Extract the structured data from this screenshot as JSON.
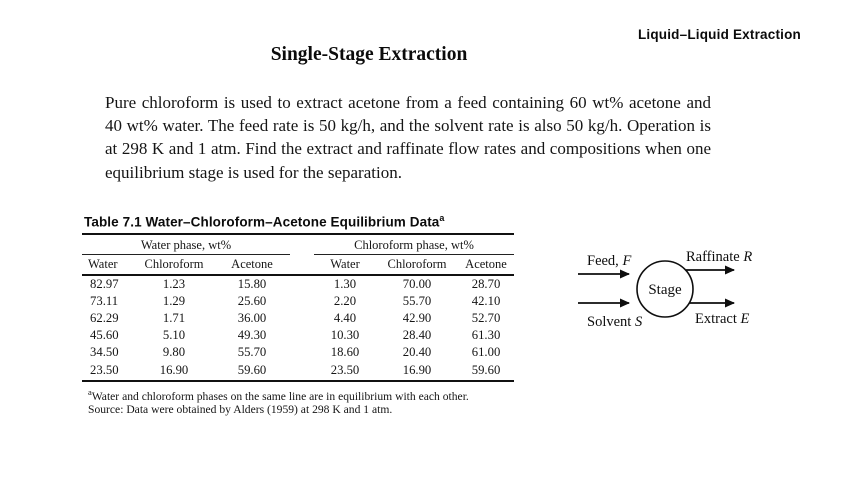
{
  "page": {
    "header_right": "Liquid–Liquid Extraction",
    "title": "Single-Stage Extraction",
    "paragraph": "Pure chloroform is used to extract acetone from a feed containing 60 wt% acetone and 40 wt% water. The feed rate is 50 kg/h, and the solvent rate is also 50 kg/h. Operation is at 298 K and 1 atm. Find the extract and raffinate flow rates and compositions when one equilibrium stage is used for the separation."
  },
  "table": {
    "title": "Table 7.1 Water–Chloroform–Acetone Equilibrium Data",
    "title_superscript": "a",
    "group_headers": [
      "Water phase, wt%",
      "Chloroform phase, wt%"
    ],
    "column_headers": [
      "Water",
      "Chloroform",
      "Acetone",
      "Water",
      "Chloroform",
      "Acetone"
    ],
    "rows": [
      [
        "82.97",
        "1.23",
        "15.80",
        "1.30",
        "70.00",
        "28.70"
      ],
      [
        "73.11",
        "1.29",
        "25.60",
        "2.20",
        "55.70",
        "42.10"
      ],
      [
        "62.29",
        "1.71",
        "36.00",
        "4.40",
        "42.90",
        "52.70"
      ],
      [
        "45.60",
        "5.10",
        "49.30",
        "10.30",
        "28.40",
        "61.30"
      ],
      [
        "34.50",
        "9.80",
        "55.70",
        "18.60",
        "20.40",
        "61.00"
      ],
      [
        "23.50",
        "16.90",
        "59.60",
        "23.50",
        "16.90",
        "59.60"
      ]
    ],
    "footnote_superscript": "a",
    "footnote_text": "Water and chloroform phases on the same line are in equilibrium with each other.",
    "source_text": "Source: Data were obtained by Alders (1959) at 298 K and 1 atm."
  },
  "diagram": {
    "stage_label": "Stage",
    "streams": {
      "feed": {
        "text": "Feed, ",
        "var": "F"
      },
      "raffinate": {
        "text": "Raffinate ",
        "var": "R"
      },
      "solvent": {
        "text": "Solvent ",
        "var": "S"
      },
      "extract": {
        "text": "Extract ",
        "var": "E"
      }
    }
  }
}
